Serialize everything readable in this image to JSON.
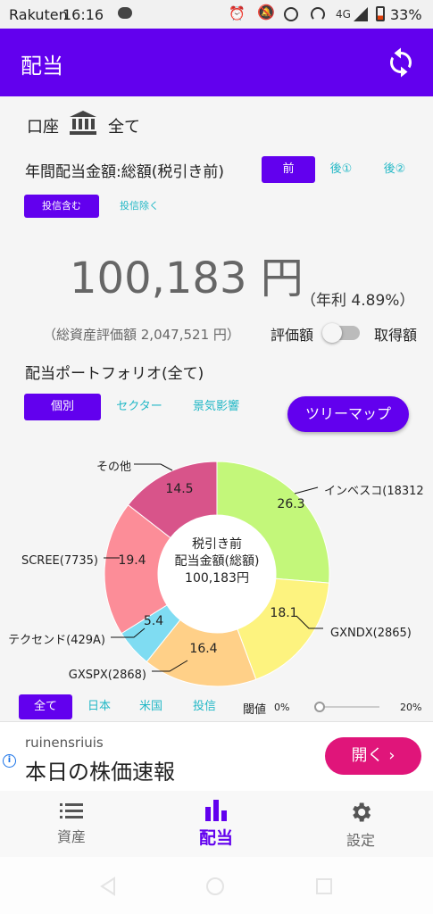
{
  "status_bar": {
    "carrier": "Rakuten",
    "time": "16:16",
    "network": "4G",
    "battery": "33%"
  },
  "app_bar": {
    "title": "配当",
    "refresh_icon": "refresh-icon"
  },
  "account": {
    "label": "口座",
    "icon": "bank-icon",
    "value": "全て"
  },
  "annual_dividend": {
    "label": "年間配当金額:総額(税引き前)",
    "tax_options": [
      "前",
      "後①",
      "後②"
    ],
    "tax_selected": "前",
    "fund_options": [
      "投信含む",
      "投信除く"
    ],
    "fund_selected": "投信含む",
    "amount": "100,183 円",
    "yield": "（年利 4.89%）",
    "total_assets": "（総資産評価額 2,047,521 円）",
    "valuation_label": "評価額",
    "acquisition_label": "取得額",
    "toggle_on": false
  },
  "portfolio": {
    "title": "配当ポートフォリオ(全て)",
    "tabs": [
      "個別",
      "セクター",
      "景気影響"
    ],
    "tab_selected": "個別",
    "treemap_button": "ツリーマップ"
  },
  "chart_data": {
    "type": "pie",
    "donut": true,
    "center_text": [
      "税引き前",
      "配当金額(総額)",
      "100,183円"
    ],
    "slices": [
      {
        "label": "インベスコ(18312",
        "value": 26.3,
        "color": "#c3f77a"
      },
      {
        "label": "GXNDX(2865)",
        "value": 18.1,
        "color": "#fdf37f"
      },
      {
        "label": "GXSPX(2868)",
        "value": 16.4,
        "color": "#ffd088"
      },
      {
        "label": "テクセンド(429A)",
        "value": 5.4,
        "color": "#7fdcf2"
      },
      {
        "label": "SCREE(7735)",
        "value": 19.4,
        "color": "#fc8d98"
      },
      {
        "label": "その他",
        "value": 14.5,
        "color": "#d8548a"
      }
    ]
  },
  "filters": {
    "markets": [
      "全て",
      "日本",
      "米国",
      "投信"
    ],
    "market_selected": "全て",
    "threshold_label": "閾値",
    "threshold_min": "0%",
    "threshold_max": "20%",
    "threshold_value": 0
  },
  "ad": {
    "source": "ruinensriuis",
    "headline": "本日の株価速報",
    "button": "開く ›"
  },
  "bottom_nav": {
    "items": [
      {
        "label": "資産",
        "icon": "list-icon"
      },
      {
        "label": "配当",
        "icon": "bar-chart-icon"
      },
      {
        "label": "設定",
        "icon": "gear-icon"
      }
    ],
    "active": "配当"
  },
  "colors": {
    "primary": "#6200ee",
    "accent": "#22b8c6",
    "ad_button": "#e0157a"
  }
}
